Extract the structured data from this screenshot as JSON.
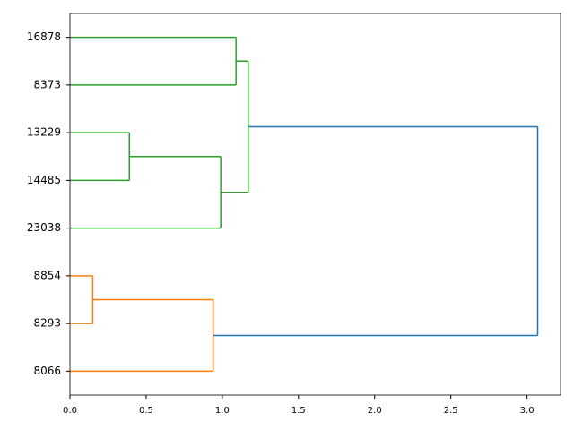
{
  "chart_data": {
    "type": "dendrogram",
    "xlim": [
      0,
      3.22
    ],
    "xticks": [
      {
        "value": 0,
        "label": "0.0"
      },
      {
        "value": 0.5,
        "label": "0.5"
      },
      {
        "value": 1,
        "label": "1.0"
      },
      {
        "value": 1.5,
        "label": "1.5"
      },
      {
        "value": 2,
        "label": "2.0"
      },
      {
        "value": 2.5,
        "label": "2.5"
      },
      {
        "value": 3,
        "label": "3.0"
      }
    ],
    "tree": {
      "height": 3.07,
      "color": "#1f77b4",
      "children": [
        {
          "height": 1.17,
          "color": "#2ca02c",
          "children": [
            {
              "height": 1.09,
              "color": "#2ca02c",
              "children": [
                {
                  "label": "16878"
                },
                {
                  "label": "8373"
                }
              ]
            },
            {
              "height": 0.99,
              "color": "#2ca02c",
              "children": [
                {
                  "height": 0.39,
                  "color": "#2ca02c",
                  "children": [
                    {
                      "label": "13229"
                    },
                    {
                      "label": "14485"
                    }
                  ]
                },
                {
                  "label": "23038"
                }
              ]
            }
          ]
        },
        {
          "height": 0.94,
          "color": "#ff7f0e",
          "children": [
            {
              "height": 0.15,
              "color": "#ff7f0e",
              "children": [
                {
                  "label": "8854"
                },
                {
                  "label": "8293"
                }
              ]
            },
            {
              "label": "8066"
            }
          ]
        }
      ]
    }
  }
}
